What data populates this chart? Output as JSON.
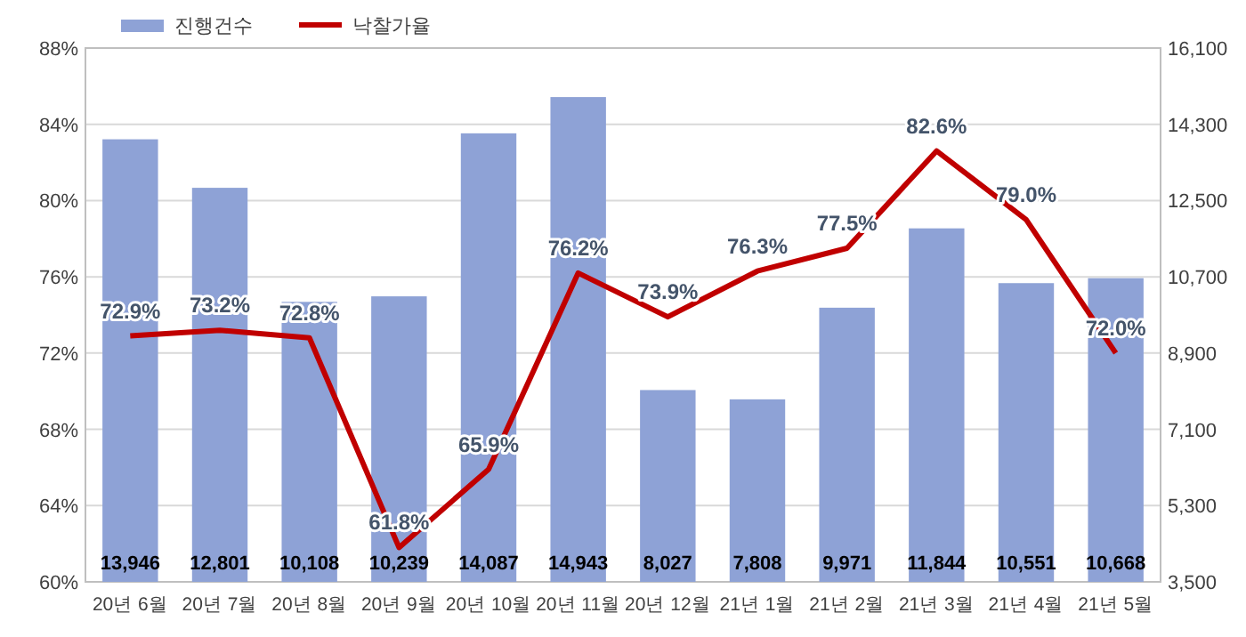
{
  "chart_data": {
    "type": "bar",
    "categories": [
      "20년 6월",
      "20년 7월",
      "20년 8월",
      "20년 9월",
      "20년 10월",
      "20년 11월",
      "20년 12월",
      "21년 1월",
      "21년 2월",
      "21년 3월",
      "21년 4월",
      "21년 5월"
    ],
    "ylim": [
      60,
      88
    ],
    "yticks": [
      {
        "value": 60,
        "label": "60%"
      },
      {
        "value": 64,
        "label": "64%"
      },
      {
        "value": 68,
        "label": "68%"
      },
      {
        "value": 72,
        "label": "72%"
      },
      {
        "value": 76,
        "label": "76%"
      },
      {
        "value": 80,
        "label": "80%"
      },
      {
        "value": 84,
        "label": "84%"
      },
      {
        "value": 88,
        "label": "88%"
      }
    ],
    "y2lim": [
      3500,
      16100
    ],
    "y2ticks": [
      {
        "value": 3500,
        "label": "3,500"
      },
      {
        "value": 5300,
        "label": "5,300"
      },
      {
        "value": 7100,
        "label": "7,100"
      },
      {
        "value": 8900,
        "label": "8,900"
      },
      {
        "value": 10700,
        "label": "10,700"
      },
      {
        "value": 12500,
        "label": "12,500"
      },
      {
        "value": 14300,
        "label": "14,300"
      },
      {
        "value": 16100,
        "label": "16,100"
      }
    ],
    "grid": "y",
    "legend": "top left",
    "series": [
      {
        "name": "진행건수",
        "axis": "y2",
        "color": "#8ea2d6",
        "values": [
          13946,
          12801,
          10108,
          10239,
          14087,
          14943,
          8027,
          7808,
          9971,
          11844,
          10551,
          10668
        ],
        "value_labels": [
          "13,946",
          "12,801",
          "10,108",
          "10,239",
          "14,087",
          "14,943",
          "8,027",
          "7,808",
          "9,971",
          "11,844",
          "10,551",
          "10,668"
        ]
      },
      {
        "name": "낙찰가율",
        "type": "line",
        "axis": "y",
        "color": "#c00000",
        "values": [
          72.9,
          73.2,
          72.8,
          61.8,
          65.9,
          76.2,
          73.9,
          76.3,
          77.5,
          82.6,
          79.0,
          72.0
        ],
        "value_labels": [
          "72.9%",
          "73.2%",
          "72.8%",
          "61.8%",
          "65.9%",
          "76.2%",
          "73.9%",
          "76.3%",
          "77.5%",
          "82.6%",
          "79.0%",
          "72.0%"
        ]
      }
    ]
  }
}
